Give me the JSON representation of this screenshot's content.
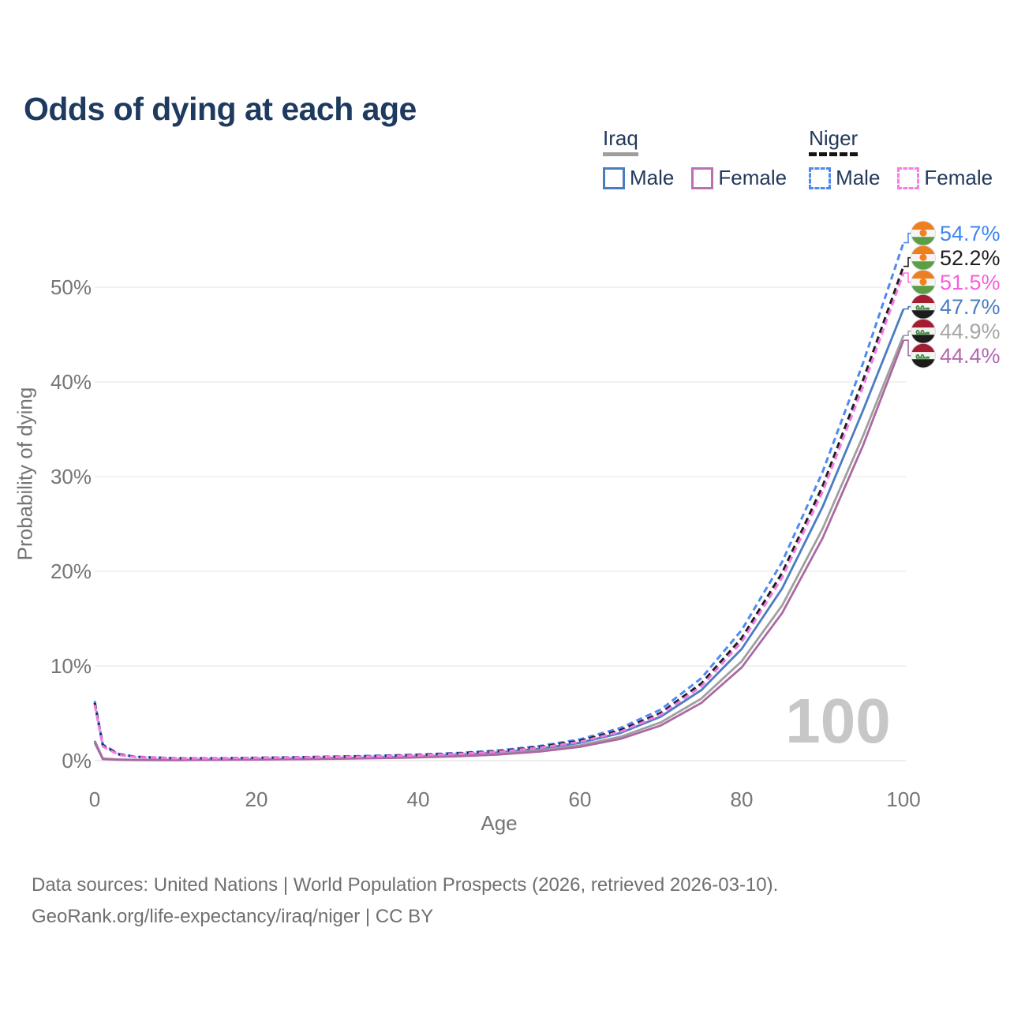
{
  "page": {
    "title": "Odds of dying at each age",
    "watermark_age": "100"
  },
  "legend": {
    "groups": [
      {
        "label": "Iraq",
        "line_style": "solid",
        "underline_color": "#9e9e9e",
        "items": [
          {
            "label": "Male",
            "color": "#4a7cc2",
            "dashed": false
          },
          {
            "label": "Female",
            "color": "#bb6fb4",
            "dashed": false
          }
        ]
      },
      {
        "label": "Niger",
        "line_style": "dashed",
        "underline_color": "#141414",
        "items": [
          {
            "label": "Male",
            "color": "#4e8af2",
            "dashed": true
          },
          {
            "label": "Female",
            "color": "#fb7ce8",
            "dashed": true
          }
        ]
      }
    ]
  },
  "footer": {
    "line1": "Data sources: United Nations | World Population Prospects (2026, retrieved 2026-03-10).",
    "line2": "GeoRank.org/life-expectancy/iraq/niger | CC BY"
  },
  "chart_data": {
    "type": "line",
    "title": "Odds of dying at each age",
    "xlabel": "Age",
    "ylabel": "Probability of dying",
    "xlim": [
      0,
      100
    ],
    "ylim_percent": [
      0,
      56.8
    ],
    "xticks": [
      0,
      20,
      40,
      60,
      80,
      100
    ],
    "yticks_percent": [
      0,
      10,
      20,
      30,
      40,
      50
    ],
    "grid": "horizontal",
    "legend_position": "top-right",
    "hover_age_watermark": "100",
    "series": [
      {
        "id": "iraq-male",
        "country": "Iraq",
        "sex": "Male",
        "color": "#4a7cc2",
        "label_color": "#4a7cc2",
        "dashed": false,
        "flag": "iraq",
        "end_value": 47.7,
        "end_label": "47.7%",
        "points": [
          [
            0,
            2.1
          ],
          [
            1,
            0.22
          ],
          [
            3,
            0.12
          ],
          [
            5,
            0.09
          ],
          [
            10,
            0.08
          ],
          [
            15,
            0.11
          ],
          [
            20,
            0.16
          ],
          [
            25,
            0.21
          ],
          [
            30,
            0.27
          ],
          [
            35,
            0.34
          ],
          [
            40,
            0.45
          ],
          [
            45,
            0.61
          ],
          [
            50,
            0.86
          ],
          [
            55,
            1.26
          ],
          [
            60,
            1.88
          ],
          [
            65,
            2.92
          ],
          [
            70,
            4.65
          ],
          [
            75,
            7.45
          ],
          [
            80,
            11.8
          ],
          [
            85,
            18.2
          ],
          [
            90,
            26.8
          ],
          [
            95,
            37.0
          ],
          [
            100,
            47.7
          ]
        ]
      },
      {
        "id": "iraq-all",
        "country": "Iraq",
        "sex": "Both",
        "color": "#9f9f9f",
        "label_color": "#a6a6a6",
        "dashed": false,
        "flag": "iraq",
        "end_value": 44.9,
        "end_label": "44.9%",
        "points": [
          [
            0,
            2.0
          ],
          [
            1,
            0.2
          ],
          [
            3,
            0.11
          ],
          [
            5,
            0.08
          ],
          [
            10,
            0.07
          ],
          [
            15,
            0.1
          ],
          [
            20,
            0.14
          ],
          [
            25,
            0.18
          ],
          [
            30,
            0.23
          ],
          [
            35,
            0.3
          ],
          [
            40,
            0.39
          ],
          [
            45,
            0.53
          ],
          [
            50,
            0.74
          ],
          [
            55,
            1.08
          ],
          [
            60,
            1.62
          ],
          [
            65,
            2.52
          ],
          [
            70,
            4.05
          ],
          [
            75,
            6.55
          ],
          [
            80,
            10.5
          ],
          [
            85,
            16.4
          ],
          [
            90,
            24.5
          ],
          [
            95,
            34.3
          ],
          [
            100,
            44.9
          ]
        ]
      },
      {
        "id": "iraq-female",
        "country": "Iraq",
        "sex": "Female",
        "color": "#ab68a3",
        "label_color": "#b269af",
        "dashed": false,
        "flag": "iraq",
        "end_value": 44.4,
        "end_label": "44.4%",
        "points": [
          [
            0,
            1.9
          ],
          [
            1,
            0.17
          ],
          [
            3,
            0.1
          ],
          [
            5,
            0.07
          ],
          [
            10,
            0.06
          ],
          [
            15,
            0.09
          ],
          [
            20,
            0.12
          ],
          [
            25,
            0.16
          ],
          [
            30,
            0.2
          ],
          [
            35,
            0.26
          ],
          [
            40,
            0.34
          ],
          [
            45,
            0.46
          ],
          [
            50,
            0.65
          ],
          [
            55,
            0.96
          ],
          [
            60,
            1.46
          ],
          [
            65,
            2.3
          ],
          [
            70,
            3.72
          ],
          [
            75,
            6.1
          ],
          [
            80,
            9.85
          ],
          [
            85,
            15.6
          ],
          [
            90,
            23.5
          ],
          [
            95,
            33.3
          ],
          [
            100,
            44.4
          ]
        ]
      },
      {
        "id": "niger-male",
        "country": "Niger",
        "sex": "Male",
        "color": "#4e8af2",
        "label_color": "#3e86f0",
        "dashed": true,
        "flag": "niger",
        "end_value": 54.7,
        "end_label": "54.7%",
        "points": [
          [
            0,
            6.3
          ],
          [
            1,
            1.7
          ],
          [
            3,
            0.7
          ],
          [
            5,
            0.42
          ],
          [
            10,
            0.26
          ],
          [
            15,
            0.26
          ],
          [
            20,
            0.31
          ],
          [
            25,
            0.37
          ],
          [
            30,
            0.44
          ],
          [
            35,
            0.52
          ],
          [
            40,
            0.64
          ],
          [
            45,
            0.82
          ],
          [
            50,
            1.08
          ],
          [
            55,
            1.55
          ],
          [
            60,
            2.25
          ],
          [
            65,
            3.45
          ],
          [
            70,
            5.4
          ],
          [
            75,
            8.7
          ],
          [
            80,
            13.8
          ],
          [
            85,
            21.0
          ],
          [
            90,
            30.5
          ],
          [
            95,
            42.0
          ],
          [
            100,
            54.7
          ]
        ]
      },
      {
        "id": "niger-all",
        "country": "Niger",
        "sex": "Both",
        "color": "#1f1f1f",
        "label_color": "#1f1f1f",
        "dashed": true,
        "flag": "niger",
        "end_value": 52.2,
        "end_label": "52.2%",
        "points": [
          [
            0,
            6.1
          ],
          [
            1,
            1.6
          ],
          [
            3,
            0.65
          ],
          [
            5,
            0.4
          ],
          [
            10,
            0.25
          ],
          [
            15,
            0.25
          ],
          [
            20,
            0.29
          ],
          [
            25,
            0.35
          ],
          [
            30,
            0.41
          ],
          [
            35,
            0.49
          ],
          [
            40,
            0.6
          ],
          [
            45,
            0.77
          ],
          [
            50,
            1.01
          ],
          [
            55,
            1.45
          ],
          [
            60,
            2.1
          ],
          [
            65,
            3.22
          ],
          [
            70,
            5.05
          ],
          [
            75,
            8.15
          ],
          [
            80,
            12.95
          ],
          [
            85,
            19.85
          ],
          [
            90,
            29.0
          ],
          [
            95,
            40.2
          ],
          [
            100,
            52.2
          ]
        ]
      },
      {
        "id": "niger-female",
        "country": "Niger",
        "sex": "Female",
        "color": "#f775e5",
        "label_color": "#f75fdd",
        "dashed": true,
        "flag": "niger",
        "end_value": 51.5,
        "end_label": "51.5%",
        "points": [
          [
            0,
            5.9
          ],
          [
            1,
            1.5
          ],
          [
            3,
            0.6
          ],
          [
            5,
            0.38
          ],
          [
            10,
            0.24
          ],
          [
            15,
            0.24
          ],
          [
            20,
            0.28
          ],
          [
            25,
            0.33
          ],
          [
            30,
            0.39
          ],
          [
            35,
            0.46
          ],
          [
            40,
            0.56
          ],
          [
            45,
            0.72
          ],
          [
            50,
            0.95
          ],
          [
            55,
            1.36
          ],
          [
            60,
            1.98
          ],
          [
            65,
            3.05
          ],
          [
            70,
            4.85
          ],
          [
            75,
            7.85
          ],
          [
            80,
            12.55
          ],
          [
            85,
            19.35
          ],
          [
            90,
            28.4
          ],
          [
            95,
            39.5
          ],
          [
            100,
            51.5
          ]
        ]
      }
    ],
    "flag_colors": {
      "niger": {
        "top": "#ee7f20",
        "middle": "#f5f5f5",
        "bottom": "#5a9e46",
        "dot": "#f28122"
      },
      "iraq": {
        "top": "#a51d32",
        "middle": "#f2f2f2",
        "bottom": "#1c1c1c",
        "script": "#3e8e3e"
      }
    }
  }
}
